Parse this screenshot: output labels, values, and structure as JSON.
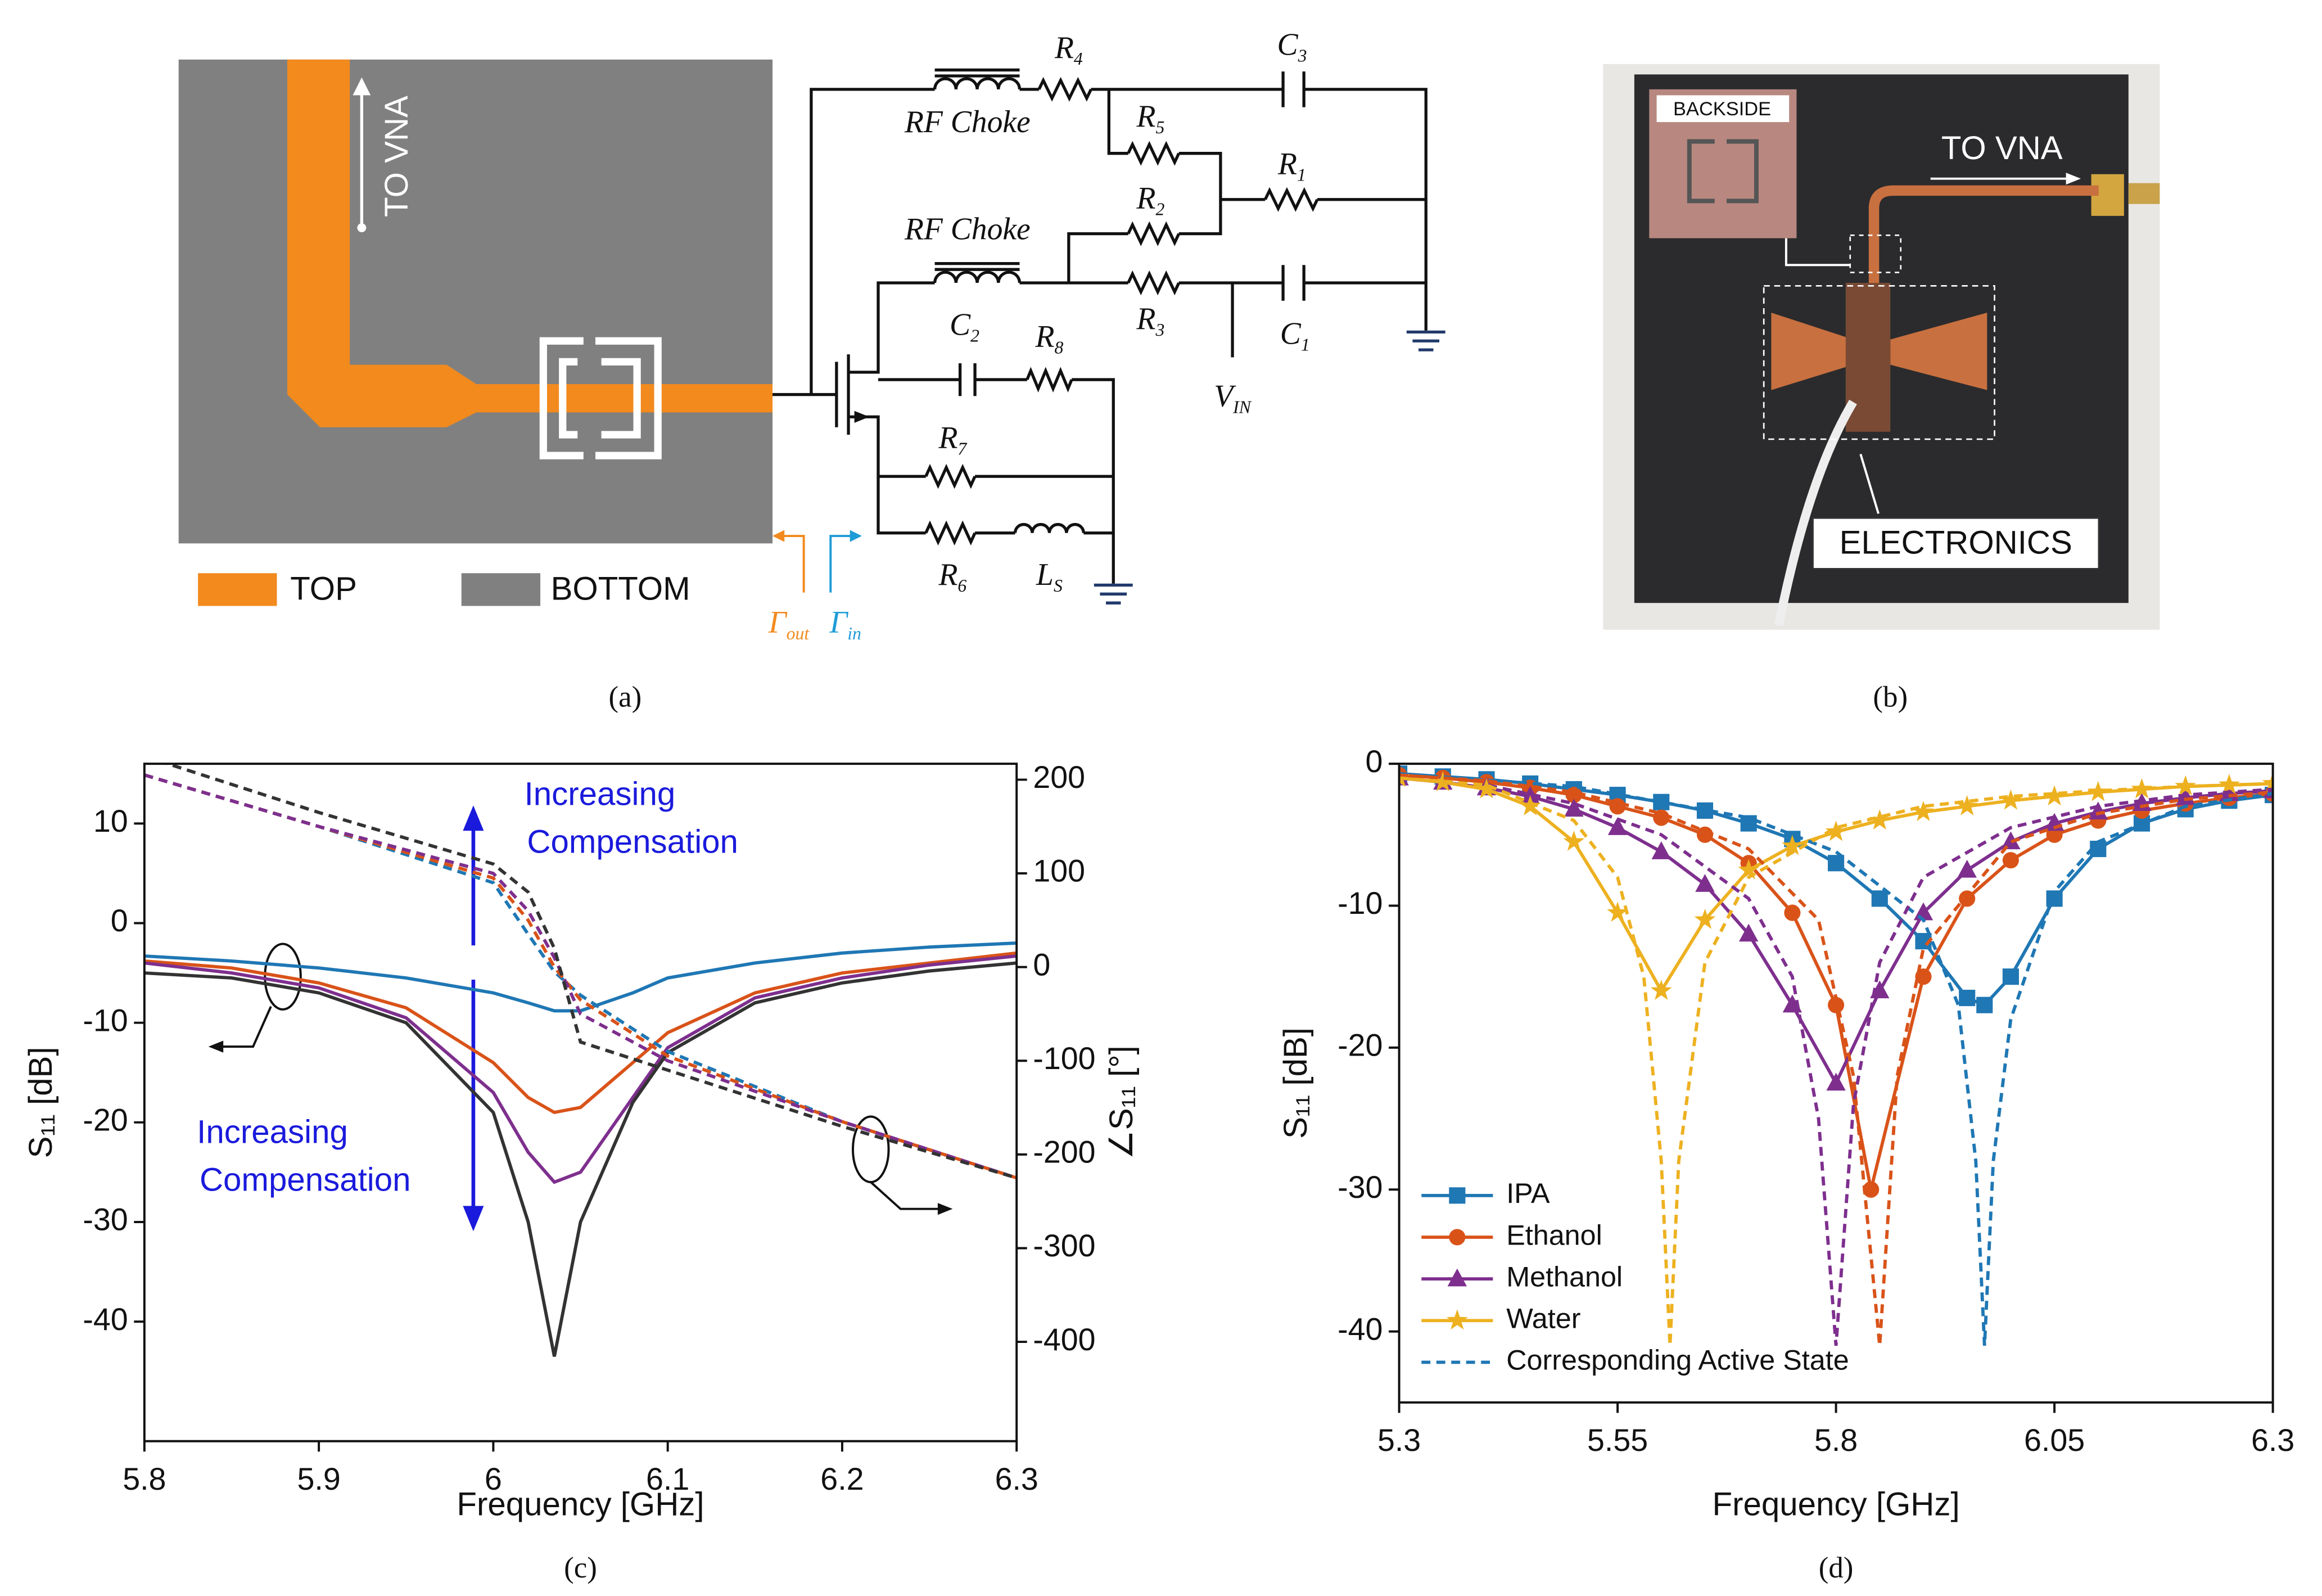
{
  "diagram": {
    "to_vna": "TO VNA",
    "legend": [
      "TOP",
      "BOTTOM"
    ],
    "rf_choke": [
      "RF Choke",
      "RF Choke"
    ],
    "components": [
      {
        "base": "R",
        "sub": "4"
      },
      {
        "base": "R",
        "sub": "5"
      },
      {
        "base": "R",
        "sub": "1"
      },
      {
        "base": "R",
        "sub": "2"
      },
      {
        "base": "R",
        "sub": "3"
      },
      {
        "base": "C",
        "sub": "3"
      },
      {
        "base": "C",
        "sub": "1"
      },
      {
        "base": "C",
        "sub": "2"
      },
      {
        "base": "R",
        "sub": "8"
      },
      {
        "base": "R",
        "sub": "7"
      },
      {
        "base": "R",
        "sub": "6"
      },
      {
        "base": "L",
        "sub": "S"
      },
      {
        "base": "V",
        "sub": "IN"
      }
    ],
    "ports": [
      {
        "base": "Γ",
        "sub": "out"
      },
      {
        "base": "Γ",
        "sub": "in"
      }
    ],
    "caption": "(a)"
  },
  "photo": {
    "inset": "BACKSIDE",
    "to_vna": "TO VNA",
    "electronics": "ELECTRONICS",
    "caption": "(b)"
  },
  "chart_data": [
    {
      "type": "line",
      "caption": "(c)",
      "x_label": "Frequency [GHz]",
      "y_label": "S₁₁ [dB]",
      "y2_label": "∠S₁₁ [°]",
      "xlim": [
        5.8,
        6.3
      ],
      "xticks": [
        5.8,
        5.9,
        6,
        6.1,
        6.2,
        6.3
      ],
      "ylim": [
        -52,
        16
      ],
      "yticks": [
        10,
        0,
        -10,
        -20,
        -30,
        -40
      ],
      "y2lim": [
        -506,
        217
      ],
      "y2ticks": [
        200,
        100,
        0,
        -100,
        -200,
        -300,
        -400
      ],
      "annotations": [
        [
          "Increasing",
          "Compensation"
        ],
        [
          "Increasing",
          "Compensation"
        ]
      ],
      "annotation_color": "#1a1adc",
      "series": [
        {
          "color": "#1f77b4",
          "x": [
            5.8,
            5.85,
            5.9,
            5.95,
            6.0,
            6.02,
            6.035,
            6.05,
            6.08,
            6.1,
            6.15,
            6.2,
            6.25,
            6.3
          ],
          "values": [
            -3.3,
            -3.8,
            -4.5,
            -5.5,
            -7,
            -8,
            -8.8,
            -8.8,
            -7,
            -5.5,
            -4,
            -3,
            -2.4,
            -2
          ]
        },
        {
          "color": "#d95319",
          "x": [
            5.8,
            5.85,
            5.9,
            5.95,
            6.0,
            6.02,
            6.035,
            6.05,
            6.08,
            6.1,
            6.15,
            6.2,
            6.25,
            6.3
          ],
          "values": [
            -3.8,
            -4.5,
            -6,
            -8.5,
            -14,
            -17.5,
            -19,
            -18.5,
            -14,
            -11,
            -7,
            -5,
            -4,
            -3
          ]
        },
        {
          "color": "#7e2f8e",
          "x": [
            5.8,
            5.85,
            5.9,
            5.95,
            6.0,
            6.02,
            6.035,
            6.05,
            6.08,
            6.1,
            6.15,
            6.2,
            6.25,
            6.3
          ],
          "values": [
            -4,
            -5,
            -6.5,
            -9.5,
            -17,
            -23,
            -26,
            -25,
            -17.5,
            -12.5,
            -7.5,
            -5.5,
            -4.2,
            -3.3
          ]
        },
        {
          "color": "#333333",
          "x": [
            5.8,
            5.85,
            5.9,
            5.95,
            6.0,
            6.02,
            6.035,
            6.05,
            6.08,
            6.1,
            6.15,
            6.2,
            6.25,
            6.3
          ],
          "values": [
            -5,
            -5.5,
            -7,
            -10,
            -19,
            -30,
            -43.5,
            -30,
            -18,
            -13,
            -8,
            -6,
            -4.8,
            -4
          ]
        },
        {
          "color": "#1f77b4",
          "axis": "y2",
          "dashed": true,
          "x": [
            5.8,
            5.9,
            6.0,
            6.02,
            6.035,
            6.05,
            6.1,
            6.2,
            6.3
          ],
          "values": [
            205,
            150,
            90,
            35,
            -5,
            -30,
            -90,
            -165,
            -225
          ]
        },
        {
          "color": "#d95319",
          "axis": "y2",
          "dashed": true,
          "x": [
            5.8,
            5.9,
            6.0,
            6.02,
            6.035,
            6.05,
            6.1,
            6.2,
            6.3
          ],
          "values": [
            205,
            150,
            95,
            50,
            0,
            -35,
            -95,
            -165,
            -225
          ]
        },
        {
          "color": "#7e2f8e",
          "axis": "y2",
          "dashed": true,
          "x": [
            5.8,
            5.9,
            6.0,
            6.02,
            6.035,
            6.05,
            6.1,
            6.2,
            6.3
          ],
          "values": [
            205,
            150,
            100,
            60,
            10,
            -50,
            -100,
            -165,
            -225
          ]
        },
        {
          "color": "#333333",
          "axis": "y2",
          "dashed": true,
          "x": [
            5.8,
            5.9,
            6.0,
            6.02,
            6.035,
            6.05,
            6.1,
            6.2,
            6.3
          ],
          "values": [
            225,
            165,
            110,
            80,
            20,
            -80,
            -110,
            -170,
            -225
          ]
        }
      ]
    },
    {
      "type": "line",
      "caption": "(d)",
      "x_label": "Frequency [GHz]",
      "y_label": "S₁₁ [dB]",
      "xlim": [
        5.3,
        6.3
      ],
      "xticks": [
        5.3,
        5.55,
        5.8,
        6.05,
        6.3
      ],
      "ylim": [
        -45,
        0
      ],
      "yticks": [
        0,
        -10,
        -20,
        -30,
        -40
      ],
      "legend": "lower left",
      "dashed_label": "Corresponding Active State",
      "series": [
        {
          "name": "IPA",
          "color": "#1f77b4",
          "marker": "square",
          "x": [
            5.3,
            5.35,
            5.4,
            5.45,
            5.5,
            5.55,
            5.6,
            5.65,
            5.7,
            5.75,
            5.8,
            5.85,
            5.9,
            5.95,
            5.97,
            6.0,
            6.05,
            6.1,
            6.15,
            6.2,
            6.25,
            6.3
          ],
          "values": [
            -0.7,
            -0.9,
            -1.1,
            -1.4,
            -1.8,
            -2.2,
            -2.7,
            -3.3,
            -4.2,
            -5.3,
            -7,
            -9.5,
            -12.5,
            -16.5,
            -17,
            -15,
            -9.5,
            -6,
            -4.2,
            -3.2,
            -2.6,
            -2.2
          ]
        },
        {
          "name": "Ethanol",
          "color": "#d95319",
          "marker": "circle",
          "x": [
            5.3,
            5.35,
            5.4,
            5.45,
            5.5,
            5.55,
            5.6,
            5.65,
            5.7,
            5.75,
            5.8,
            5.84,
            5.9,
            5.95,
            6.0,
            6.05,
            6.1,
            6.15,
            6.2,
            6.25,
            6.3
          ],
          "values": [
            -0.8,
            -1,
            -1.3,
            -1.7,
            -2.2,
            -3,
            -3.8,
            -5,
            -7,
            -10.5,
            -17,
            -30,
            -15,
            -9.5,
            -6.8,
            -5,
            -4,
            -3.3,
            -2.8,
            -2.4,
            -2.1
          ]
        },
        {
          "name": "Methanol",
          "color": "#7e2f8e",
          "marker": "triangle",
          "x": [
            5.3,
            5.35,
            5.4,
            5.45,
            5.5,
            5.55,
            5.6,
            5.65,
            5.7,
            5.75,
            5.8,
            5.85,
            5.9,
            5.95,
            6.0,
            6.05,
            6.1,
            6.15,
            6.2,
            6.25,
            6.3
          ],
          "values": [
            -1,
            -1.3,
            -1.7,
            -2.3,
            -3.2,
            -4.5,
            -6.2,
            -8.5,
            -12,
            -17,
            -22.5,
            -16,
            -10.5,
            -7.5,
            -5.5,
            -4.2,
            -3.4,
            -2.8,
            -2.4,
            -2.1,
            -1.9
          ]
        },
        {
          "name": "Water",
          "color": "#edb120",
          "marker": "star",
          "x": [
            5.3,
            5.35,
            5.4,
            5.45,
            5.5,
            5.55,
            5.6,
            5.65,
            5.7,
            5.75,
            5.8,
            5.85,
            5.9,
            5.95,
            6.0,
            6.05,
            6.1,
            6.15,
            6.2,
            6.25,
            6.3
          ],
          "values": [
            -1,
            -1.3,
            -1.8,
            -3,
            -5.5,
            -10.5,
            -16,
            -11,
            -7.5,
            -5.8,
            -4.8,
            -4,
            -3.4,
            -3,
            -2.6,
            -2.3,
            -2,
            -1.8,
            -1.6,
            -1.5,
            -1.4
          ]
        },
        {
          "color": "#1f77b4",
          "dashed": true,
          "x": [
            5.3,
            5.5,
            5.7,
            5.8,
            5.9,
            5.94,
            5.96,
            5.97,
            5.98,
            6.0,
            6.05,
            6.1,
            6.2,
            6.3
          ],
          "values": [
            -0.7,
            -1.6,
            -3.8,
            -6.2,
            -11,
            -17,
            -28,
            -41,
            -28,
            -18,
            -9,
            -5.5,
            -3,
            -2.1
          ]
        },
        {
          "color": "#d95319",
          "dashed": true,
          "x": [
            5.3,
            5.4,
            5.5,
            5.6,
            5.7,
            5.78,
            5.82,
            5.85,
            5.87,
            5.9,
            6.0,
            6.1,
            6.2,
            6.3
          ],
          "values": [
            -0.8,
            -1.2,
            -2,
            -3.5,
            -6,
            -11,
            -22,
            -41,
            -22,
            -13,
            -5.5,
            -3.5,
            -2.5,
            -2
          ]
        },
        {
          "color": "#7e2f8e",
          "dashed": true,
          "x": [
            5.3,
            5.4,
            5.5,
            5.6,
            5.7,
            5.75,
            5.78,
            5.8,
            5.82,
            5.85,
            5.9,
            6.0,
            6.1,
            6.2,
            6.3
          ],
          "values": [
            -1,
            -1.5,
            -2.8,
            -5,
            -9.5,
            -15,
            -25,
            -41,
            -24,
            -14,
            -8,
            -4.5,
            -3,
            -2.2,
            -1.8
          ]
        },
        {
          "color": "#edb120",
          "dashed": true,
          "x": [
            5.3,
            5.4,
            5.5,
            5.55,
            5.58,
            5.6,
            5.61,
            5.62,
            5.65,
            5.7,
            5.8,
            5.9,
            6.0,
            6.1,
            6.2,
            6.3
          ],
          "values": [
            -1,
            -1.5,
            -4,
            -8,
            -15,
            -28,
            -41,
            -28,
            -14,
            -8,
            -4.5,
            -3,
            -2.3,
            -1.9,
            -1.6,
            -1.4
          ]
        }
      ]
    }
  ]
}
